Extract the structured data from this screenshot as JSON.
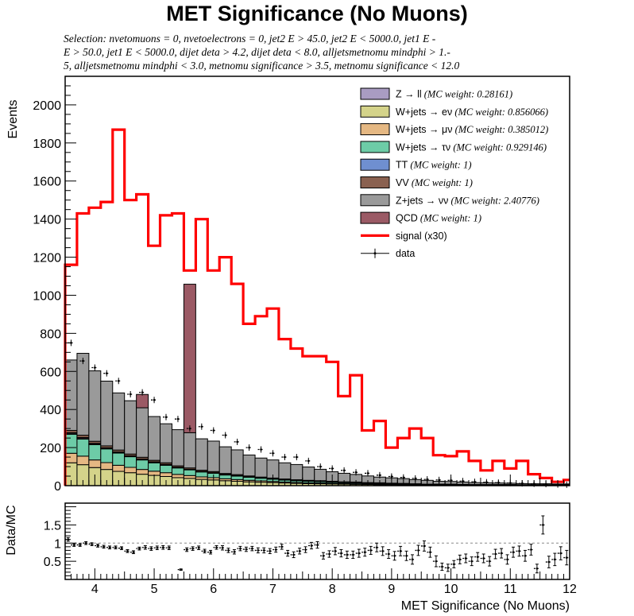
{
  "title": "MET Significance (No Muons)",
  "selection_lines": [
    "Selection: nvetomuons  =  0, nvetoelectrons  =  0, jet2 E > 45.0, jet2 E < 5000.0, jet1 E -",
    "E > 50.0, jet1 E < 5000.0, dijet deta > 4.2, dijet deta < 8.0, alljetsmetnomu mindphi > 1.-",
    "5, alljetsmetnomu mindphi < 3.0, metnomu significance > 3.5, metnomu significance < 12.0"
  ],
  "colors": {
    "zll": "#a99cc2",
    "wenu": "#d4d38a",
    "wmunu": "#e5b883",
    "wtaunu": "#6dcca7",
    "tt": "#6f8fd0",
    "vv": "#8a6150",
    "znunu": "#9a9a9a",
    "qcd": "#9b5a65",
    "signal": "#ff0000",
    "data": "#000000"
  },
  "chart_data": [
    {
      "type": "stacked_histogram",
      "title": "MET Significance (No Muons)",
      "ylabel": "Events",
      "xlim": [
        3.5,
        12.0
      ],
      "ylim": [
        0,
        2150
      ],
      "xticks": [
        4,
        5,
        6,
        7,
        8,
        9,
        10,
        11,
        12
      ],
      "yticks": [
        0,
        200,
        400,
        600,
        800,
        1000,
        1200,
        1400,
        1600,
        1800,
        2000
      ],
      "bin_edges": [
        3.5,
        3.7,
        3.9,
        4.1,
        4.3,
        4.5,
        4.7,
        4.9,
        5.1,
        5.3,
        5.5,
        5.7,
        5.9,
        6.1,
        6.3,
        6.5,
        6.7,
        6.9,
        7.1,
        7.3,
        7.5,
        7.7,
        7.9,
        8.1,
        8.3,
        8.5,
        8.7,
        8.9,
        9.1,
        9.3,
        9.5,
        9.7,
        9.9,
        10.1,
        10.3,
        10.5,
        10.7,
        10.9,
        11.1,
        11.3,
        11.5,
        11.7,
        11.9,
        12.0
      ],
      "legend": {
        "position": "top-right",
        "entries": [
          {
            "key": "zll",
            "label": "Z → ll",
            "note": "(MC weight: 0.28161)"
          },
          {
            "key": "wenu",
            "label": "W+jets → eν",
            "note": "(MC weight: 0.856066)"
          },
          {
            "key": "wmunu",
            "label": "W+jets → μν",
            "note": "(MC weight: 0.385012)"
          },
          {
            "key": "wtaunu",
            "label": "W+jets → τν",
            "note": "(MC weight: 0.929146)"
          },
          {
            "key": "tt",
            "label": "TT",
            "note": "(MC weight: 1)"
          },
          {
            "key": "vv",
            "label": "VV",
            "note": "(MC weight: 1)"
          },
          {
            "key": "znunu",
            "label": "Z+jets → νν",
            "note": "(MC weight: 2.40776)"
          },
          {
            "key": "qcd",
            "label": "QCD",
            "note": "(MC weight: 1)"
          },
          {
            "key": "signal",
            "label": "signal (x30)",
            "note": ""
          },
          {
            "key": "data",
            "label": "data",
            "note": ""
          }
        ]
      },
      "series": [
        {
          "key": "wenu",
          "values": [
            120,
            110,
            95,
            85,
            75,
            68,
            60,
            54,
            48,
            42,
            38,
            33,
            30,
            26,
            23,
            20,
            18,
            16,
            14,
            12,
            11,
            10,
            9,
            8,
            7,
            6,
            5,
            5,
            4,
            4,
            3,
            3,
            3,
            2,
            2,
            2,
            2,
            2,
            1,
            1,
            1,
            1,
            1
          ]
        },
        {
          "key": "wmunu",
          "values": [
            50,
            45,
            40,
            36,
            32,
            28,
            25,
            22,
            20,
            17,
            15,
            13,
            12,
            10,
            9,
            8,
            7,
            6,
            5,
            5,
            4,
            4,
            3,
            3,
            3,
            2,
            2,
            2,
            2,
            1,
            1,
            1,
            1,
            1,
            1,
            1,
            1,
            1,
            1,
            1,
            1,
            1,
            1
          ]
        },
        {
          "key": "wtaunu",
          "values": [
            100,
            90,
            80,
            72,
            64,
            56,
            50,
            44,
            39,
            34,
            30,
            26,
            23,
            20,
            18,
            16,
            14,
            12,
            10,
            9,
            8,
            7,
            6,
            5,
            5,
            4,
            4,
            3,
            3,
            2,
            2,
            2,
            2,
            2,
            1,
            1,
            1,
            1,
            1,
            1,
            1,
            1,
            1
          ]
        },
        {
          "key": "zll",
          "values": [
            5,
            5,
            4,
            4,
            4,
            3,
            3,
            3,
            3,
            2,
            2,
            2,
            2,
            2,
            2,
            1,
            1,
            1,
            1,
            1,
            1,
            1,
            1,
            1,
            1,
            1,
            1,
            1,
            1,
            1,
            1,
            1,
            1,
            1,
            1,
            1,
            1,
            1,
            1,
            1,
            1,
            1,
            1
          ]
        },
        {
          "key": "tt",
          "values": [
            3,
            3,
            3,
            2,
            2,
            2,
            2,
            2,
            2,
            2,
            1,
            1,
            1,
            1,
            1,
            1,
            1,
            1,
            1,
            1,
            1,
            1,
            1,
            1,
            1,
            1,
            1,
            0,
            0,
            0,
            0,
            0,
            0,
            0,
            0,
            0,
            0,
            0,
            0,
            0,
            0,
            0,
            0
          ]
        },
        {
          "key": "vv",
          "values": [
            12,
            12,
            11,
            10,
            10,
            9,
            9,
            8,
            8,
            7,
            7,
            6,
            6,
            5,
            5,
            5,
            4,
            4,
            4,
            3,
            3,
            3,
            3,
            2,
            2,
            2,
            2,
            2,
            2,
            2,
            1,
            1,
            1,
            1,
            1,
            1,
            1,
            1,
            1,
            1,
            1,
            1,
            1
          ]
        },
        {
          "key": "znunu",
          "values": [
            370,
            430,
            370,
            340,
            300,
            280,
            260,
            230,
            205,
            190,
            185,
            165,
            160,
            140,
            130,
            110,
            100,
            95,
            85,
            80,
            70,
            60,
            50,
            45,
            40,
            35,
            30,
            28,
            25,
            22,
            20,
            15,
            14,
            12,
            10,
            9,
            8,
            7,
            6,
            5,
            5,
            4,
            4
          ]
        },
        {
          "key": "qcd",
          "values": [
            0,
            0,
            0,
            0,
            0,
            0,
            70,
            0,
            0,
            0,
            780,
            0,
            0,
            0,
            0,
            0,
            0,
            0,
            0,
            0,
            0,
            0,
            0,
            0,
            0,
            0,
            0,
            0,
            0,
            0,
            0,
            0,
            0,
            0,
            0,
            0,
            0,
            0,
            0,
            0,
            0,
            0,
            0
          ]
        }
      ],
      "signal": {
        "key": "signal",
        "values": [
          1160,
          1430,
          1460,
          1490,
          1870,
          1500,
          1530,
          1260,
          1420,
          1430,
          1130,
          1400,
          1130,
          1200,
          1060,
          850,
          890,
          930,
          770,
          720,
          680,
          680,
          650,
          470,
          580,
          290,
          340,
          200,
          250,
          300,
          250,
          160,
          155,
          180,
          130,
          80,
          130,
          90,
          130,
          60,
          40,
          20,
          30
        ]
      },
      "data": {
        "key": "data",
        "values": [
          750,
          655,
          620,
          590,
          550,
          480,
          490,
          450,
          360,
          350,
          300,
          310,
          290,
          265,
          230,
          200,
          190,
          170,
          150,
          150,
          130,
          100,
          90,
          80,
          70,
          65,
          55,
          48,
          43,
          38,
          33,
          30,
          28,
          24,
          20,
          18,
          16,
          14,
          12,
          10,
          8,
          6,
          5
        ]
      }
    },
    {
      "type": "scatter",
      "ylabel": "Data/MC",
      "xlabel": "MET Significance (No Muons)",
      "xlim": [
        3.5,
        12.0
      ],
      "ylim": [
        0,
        2.1
      ],
      "reference_line": 1,
      "yticks": [
        0.5,
        1,
        1.5
      ],
      "xticks": [
        4,
        5,
        6,
        7,
        8,
        9,
        10,
        11,
        12
      ],
      "x": [
        3.55,
        3.65,
        3.75,
        3.85,
        3.95,
        4.05,
        4.15,
        4.25,
        4.35,
        4.45,
        4.55,
        4.65,
        4.75,
        4.85,
        4.95,
        5.05,
        5.15,
        5.25,
        5.45,
        5.55,
        5.65,
        5.75,
        5.85,
        5.95,
        6.05,
        6.15,
        6.25,
        6.35,
        6.45,
        6.55,
        6.65,
        6.75,
        6.85,
        6.95,
        7.05,
        7.15,
        7.25,
        7.35,
        7.45,
        7.55,
        7.65,
        7.75,
        7.85,
        7.95,
        8.05,
        8.15,
        8.25,
        8.35,
        8.45,
        8.55,
        8.65,
        8.75,
        8.85,
        8.95,
        9.05,
        9.15,
        9.25,
        9.35,
        9.45,
        9.55,
        9.65,
        9.75,
        9.85,
        9.95,
        10.05,
        10.15,
        10.25,
        10.35,
        10.45,
        10.55,
        10.65,
        10.75,
        10.85,
        10.95,
        11.05,
        11.15,
        11.25,
        11.35,
        11.45,
        11.55,
        11.65,
        11.75,
        11.85,
        11.95
      ],
      "y": [
        1.1,
        0.95,
        0.95,
        1.0,
        0.97,
        0.93,
        0.9,
        0.88,
        0.88,
        0.86,
        0.78,
        0.75,
        0.85,
        0.88,
        0.85,
        0.87,
        0.88,
        0.87,
        0.27,
        0.82,
        0.85,
        0.87,
        0.78,
        0.75,
        0.88,
        0.87,
        0.8,
        0.76,
        0.85,
        0.83,
        0.85,
        0.8,
        0.8,
        0.78,
        0.82,
        0.9,
        0.72,
        0.68,
        0.78,
        0.82,
        0.93,
        0.95,
        0.65,
        0.7,
        0.78,
        0.72,
        0.68,
        0.68,
        0.72,
        0.75,
        0.8,
        0.88,
        0.78,
        0.7,
        0.65,
        0.78,
        0.65,
        0.55,
        0.8,
        0.92,
        0.75,
        0.5,
        0.35,
        0.32,
        0.42,
        0.55,
        0.58,
        0.5,
        0.62,
        0.58,
        0.5,
        0.7,
        0.72,
        0.55,
        0.75,
        0.78,
        0.65,
        0.82,
        0.3,
        1.5,
        0.48,
        0.55,
        0.72,
        0.6
      ],
      "y_err": [
        0.05,
        0.04,
        0.04,
        0.04,
        0.04,
        0.04,
        0.04,
        0.04,
        0.04,
        0.04,
        0.04,
        0.04,
        0.04,
        0.05,
        0.05,
        0.05,
        0.05,
        0.05,
        0.02,
        0.05,
        0.05,
        0.05,
        0.05,
        0.05,
        0.05,
        0.06,
        0.06,
        0.06,
        0.06,
        0.06,
        0.06,
        0.07,
        0.07,
        0.07,
        0.07,
        0.07,
        0.08,
        0.08,
        0.08,
        0.08,
        0.09,
        0.09,
        0.09,
        0.09,
        0.1,
        0.1,
        0.1,
        0.1,
        0.11,
        0.11,
        0.11,
        0.12,
        0.12,
        0.12,
        0.12,
        0.13,
        0.13,
        0.13,
        0.14,
        0.14,
        0.14,
        0.15,
        0.1,
        0.1,
        0.1,
        0.12,
        0.12,
        0.12,
        0.12,
        0.12,
        0.13,
        0.13,
        0.13,
        0.13,
        0.14,
        0.14,
        0.15,
        0.15,
        0.12,
        0.25,
        0.16,
        0.17,
        0.18,
        0.2
      ]
    }
  ]
}
